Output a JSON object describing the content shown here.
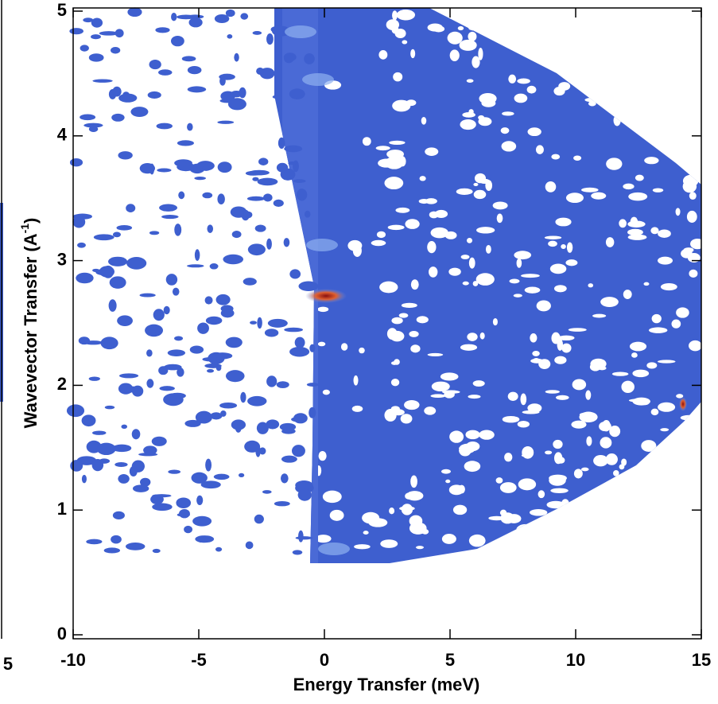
{
  "chart_data": {
    "type": "heatmap",
    "xlabel": "Energy Transfer (meV)",
    "ylabel": {
      "text": "Wavevector Transfer (A",
      "sup": "-1",
      "tail": ")"
    },
    "xlim": [
      -10,
      15
    ],
    "xticks": [
      -10,
      -5,
      0,
      5,
      10,
      15
    ],
    "ylim": [
      0,
      5
    ],
    "yticks": [
      0,
      1,
      2,
      3,
      4,
      5
    ],
    "color": "#3e5fcf",
    "partial_panel_tick": "5"
  }
}
